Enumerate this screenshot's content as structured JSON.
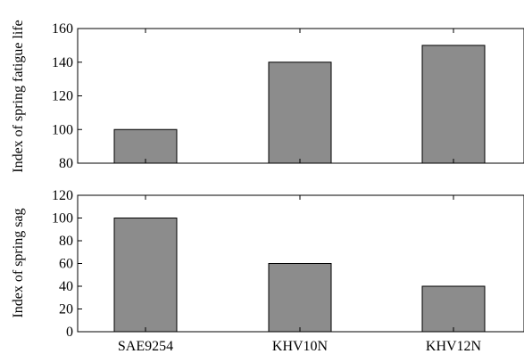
{
  "chart_data": [
    {
      "type": "bar",
      "categories": [
        "SAE9254",
        "KHV10N",
        "KHV12N"
      ],
      "values": [
        100,
        140,
        150
      ],
      "ylabel": "Index of spring fatigue life",
      "xlabel": "",
      "ylim": [
        80,
        160
      ],
      "yticks": [
        80,
        100,
        120,
        140,
        160
      ],
      "bar_color": "#8c8c8c",
      "grid": false
    },
    {
      "type": "bar",
      "categories": [
        "SAE9254",
        "KHV10N",
        "KHV12N"
      ],
      "values": [
        100,
        60,
        40
      ],
      "ylabel": "Index of spring sag",
      "xlabel": "",
      "ylim": [
        0,
        120
      ],
      "yticks": [
        0,
        20,
        40,
        60,
        80,
        100,
        120
      ],
      "bar_color": "#8c8c8c",
      "grid": false
    }
  ]
}
